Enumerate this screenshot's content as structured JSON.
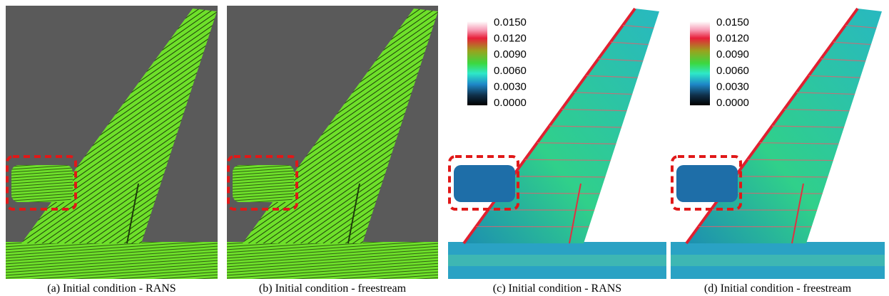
{
  "figure": {
    "captions": [
      "(a) Initial condition - RANS",
      "(b) Initial condition - freestream",
      "(c) Initial condition - RANS",
      "(d) Initial condition - freestream"
    ],
    "colorbar_labels": [
      "0.0150",
      "0.0120",
      "0.0090",
      "0.0060",
      "0.0030",
      "0.0000"
    ]
  }
}
